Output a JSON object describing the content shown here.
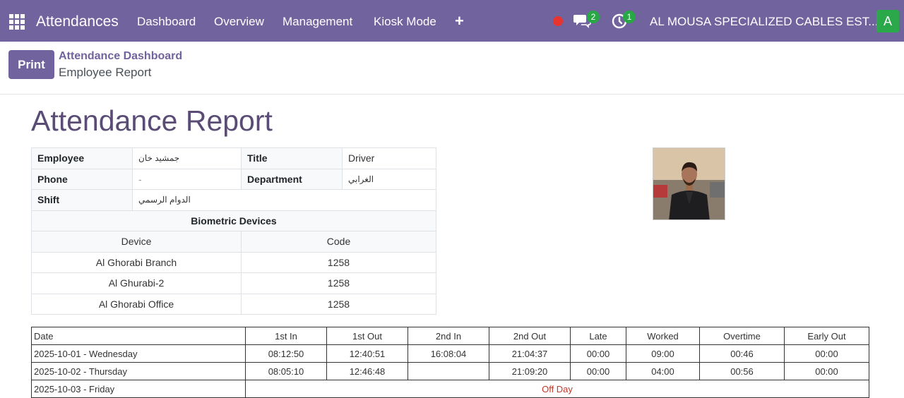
{
  "nav": {
    "app_name": "Attendances",
    "items": [
      "Dashboard",
      "Overview",
      "Management",
      "Kiosk Mode"
    ],
    "plus": "+",
    "messages_count": "2",
    "activities_count": "1",
    "company": "AL MOUSA SPECIALIZED CABLES EST...",
    "user_initial": "A"
  },
  "control": {
    "print_label": "Print",
    "breadcrumb_parent": "Attendance Dashboard",
    "breadcrumb_current": "Employee Report"
  },
  "report": {
    "title": "Attendance Report",
    "employee_label": "Employee",
    "employee_value": "جمشيد خان",
    "title_label": "Title",
    "title_value": "Driver",
    "phone_label": "Phone",
    "phone_value": "-",
    "department_label": "Department",
    "department_value": "الغرابي",
    "shift_label": "Shift",
    "shift_value": "الدوام الرسمي",
    "biometric_heading": "Biometric Devices",
    "device_header": "Device",
    "code_header": "Code",
    "devices": [
      {
        "device": "Al Ghorabi Branch",
        "code": "1258"
      },
      {
        "device": "Al Ghurabi-2",
        "code": "1258"
      },
      {
        "device": "Al Ghorabi Office",
        "code": "1258"
      }
    ]
  },
  "attendance": {
    "headers": [
      "Date",
      "1st In",
      "1st Out",
      "2nd In",
      "2nd Out",
      "Late",
      "Worked",
      "Overtime",
      "Early Out"
    ],
    "rows": [
      {
        "date": "2025-10-01 - Wednesday",
        "in1": "08:12:50",
        "out1": "12:40:51",
        "in2": "16:08:04",
        "out2": "21:04:37",
        "late": "00:00",
        "worked": "09:00",
        "overtime": "00:46",
        "early": "00:00"
      },
      {
        "date": "2025-10-02 - Thursday",
        "in1": "08:05:10",
        "out1": "12:46:48",
        "in2": "",
        "out2": "21:09:20",
        "late": "00:00",
        "worked": "04:00",
        "overtime": "00:56",
        "early": "00:00"
      }
    ],
    "off_row": {
      "date": "2025-10-03 - Friday",
      "note": "Off Day"
    }
  },
  "colors": {
    "brand": "#71639e",
    "title": "#5a4c75",
    "badge": "#28a745",
    "record": "#e8342f",
    "off_day": "#c0392b"
  },
  "icons": [
    "apps-icon",
    "record-dot-icon",
    "chat-icon",
    "activity-clock-icon",
    "add-icon"
  ]
}
